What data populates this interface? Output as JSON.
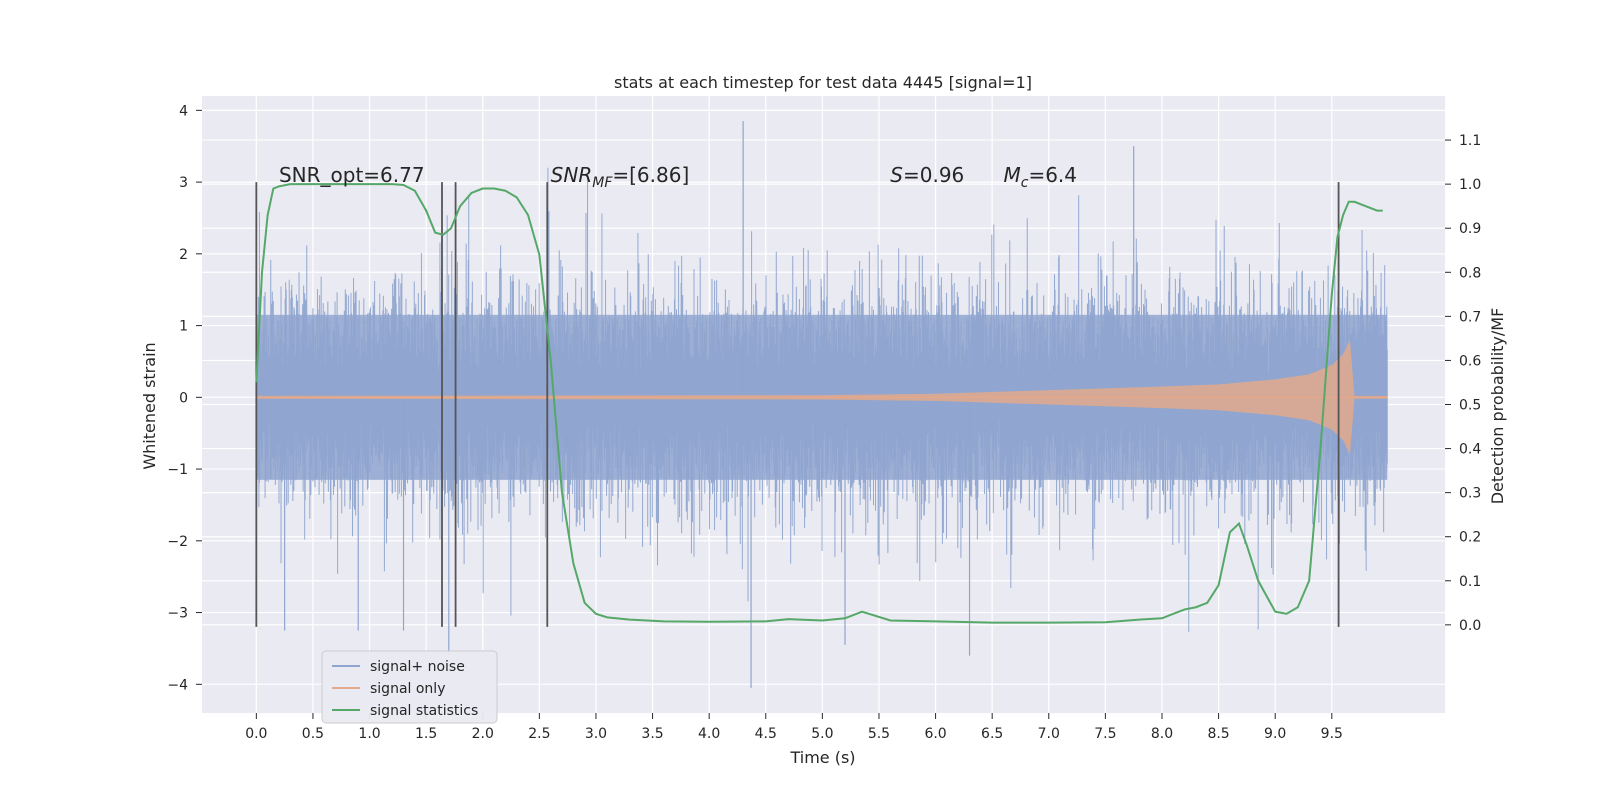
{
  "chart_data": {
    "type": "line",
    "title": "stats at each timestep for test data 4445 [signal=1]",
    "xlabel": "Time (s)",
    "ylabel": "Whitened strain",
    "y2label": "Detection probability/MF",
    "xlim": [
      -0.48,
      10.5
    ],
    "ylim": [
      -4.4,
      4.2
    ],
    "y2lim": [
      -0.2,
      1.2
    ],
    "grid": true,
    "legend_placement": "lower-left",
    "x_ticks": [
      "0.0",
      "0.5",
      "1.0",
      "1.5",
      "2.0",
      "2.5",
      "3.0",
      "3.5",
      "4.0",
      "4.5",
      "5.0",
      "5.5",
      "6.0",
      "6.5",
      "7.0",
      "7.5",
      "8.0",
      "8.5",
      "9.0",
      "9.5"
    ],
    "y_ticks": [
      "4",
      "3",
      "2",
      "1",
      "0",
      "−1",
      "−2",
      "−3",
      "−4"
    ],
    "y2_ticks": [
      "1.1",
      "1.0",
      "0.9",
      "0.8",
      "0.7",
      "0.6",
      "0.5",
      "0.4",
      "0.3",
      "0.2",
      "0.1",
      "0.0"
    ],
    "annotations": [
      {
        "text": "SNR_opt=6.77",
        "x": 0.2,
        "y": 3.0
      },
      {
        "text": "SNR",
        "sub": "MF",
        "suffix": "=[6.86]",
        "x": 2.6,
        "y": 3.0
      },
      {
        "text": "S",
        "suffix": "=0.96",
        "x": 5.6,
        "y": 3.0
      },
      {
        "text": "M",
        "sub": "c",
        "suffix": "=6.4",
        "x": 6.6,
        "y": 3.0
      }
    ],
    "vlines": {
      "x": [
        0.0,
        1.64,
        1.76,
        2.57,
        9.56
      ],
      "y_range": [
        -3.2,
        3.0
      ],
      "color": "#555555"
    },
    "series": [
      {
        "name": "signal+ noise",
        "color": "#8fa5cf",
        "axis": "left",
        "x_range": [
          0.0,
          9.99
        ],
        "typical_envelope": 1.5,
        "max": 3.85,
        "min": -4.05
      },
      {
        "name": "signal only",
        "color": "#e2a98c",
        "axis": "left",
        "envelope_x": [
          0.0,
          5.0,
          6.0,
          7.0,
          8.0,
          8.5,
          9.0,
          9.3,
          9.5,
          9.6,
          9.66,
          9.7,
          9.99
        ],
        "envelope_amplitude": [
          0.02,
          0.03,
          0.05,
          0.1,
          0.15,
          0.18,
          0.25,
          0.32,
          0.45,
          0.6,
          0.8,
          0.02,
          0.02
        ]
      },
      {
        "name": "signal statistics",
        "color": "#55a868",
        "axis": "right",
        "x": [
          0.0,
          0.05,
          0.1,
          0.15,
          0.2,
          0.3,
          0.5,
          0.8,
          1.0,
          1.2,
          1.3,
          1.4,
          1.5,
          1.58,
          1.65,
          1.72,
          1.8,
          1.9,
          2.0,
          2.1,
          2.2,
          2.3,
          2.4,
          2.5,
          2.6,
          2.7,
          2.8,
          2.9,
          3.0,
          3.1,
          3.3,
          3.6,
          4.0,
          4.5,
          4.7,
          5.0,
          5.2,
          5.35,
          5.6,
          6.0,
          6.5,
          7.0,
          7.5,
          7.8,
          8.0,
          8.1,
          8.2,
          8.3,
          8.4,
          8.5,
          8.6,
          8.68,
          8.75,
          8.85,
          9.0,
          9.1,
          9.2,
          9.3,
          9.4,
          9.5,
          9.55,
          9.6,
          9.65,
          9.7,
          9.8,
          9.9,
          9.95
        ],
        "y": [
          0.55,
          0.8,
          0.93,
          0.99,
          0.995,
          1.0,
          1.0,
          1.0,
          1.0,
          1.0,
          0.998,
          0.985,
          0.94,
          0.89,
          0.885,
          0.9,
          0.95,
          0.98,
          0.99,
          0.99,
          0.985,
          0.97,
          0.93,
          0.84,
          0.6,
          0.3,
          0.14,
          0.05,
          0.025,
          0.017,
          0.012,
          0.008,
          0.007,
          0.008,
          0.013,
          0.01,
          0.015,
          0.03,
          0.01,
          0.008,
          0.005,
          0.005,
          0.006,
          0.012,
          0.015,
          0.025,
          0.035,
          0.04,
          0.05,
          0.09,
          0.21,
          0.23,
          0.18,
          0.1,
          0.03,
          0.025,
          0.04,
          0.1,
          0.4,
          0.75,
          0.88,
          0.93,
          0.96,
          0.96,
          0.95,
          0.94,
          0.94
        ]
      }
    ]
  }
}
